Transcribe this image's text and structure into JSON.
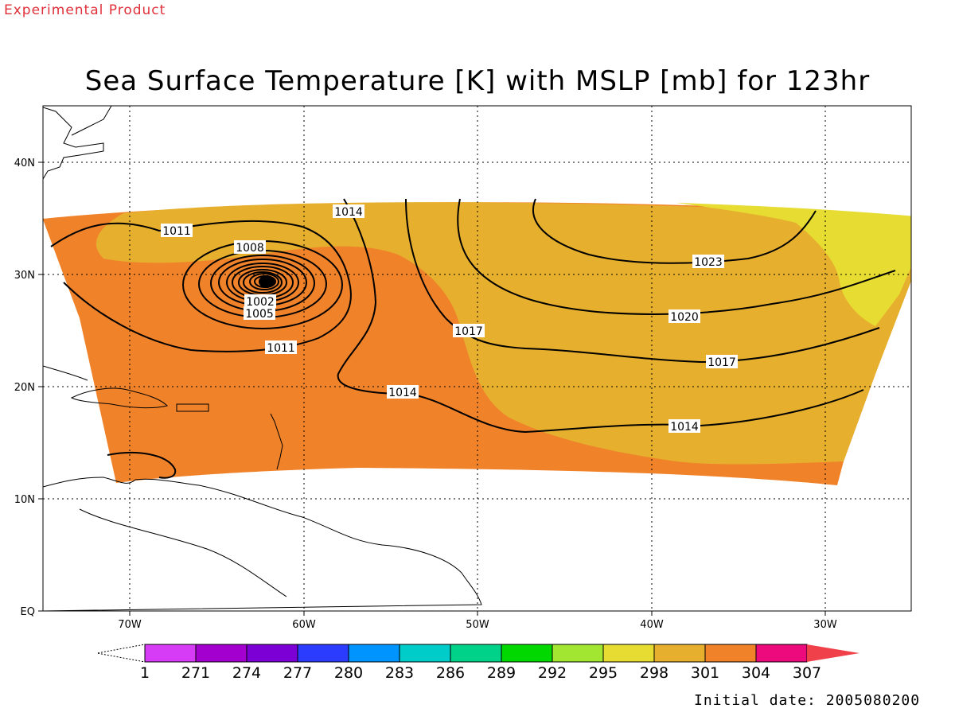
{
  "header": {
    "product_tag": "Experimental Product",
    "title": "Sea Surface Temperature [K] with MSLP [mb] for 123hr"
  },
  "footer": {
    "initial_date_label": "Initial date:",
    "initial_date_value": "2005080200"
  },
  "map": {
    "lon_ticks": [
      "70W",
      "60W",
      "50W",
      "40W",
      "30W"
    ],
    "lat_ticks": [
      "EQ",
      "10N",
      "20N",
      "30N",
      "40N"
    ],
    "grid": true,
    "region": "Tropical North Atlantic / Caribbean",
    "isobar_labels": [
      "1011",
      "1008",
      "1014",
      "1023",
      "1005",
      "1017",
      "1020",
      "1011",
      "1014",
      "1017",
      "1014"
    ],
    "low_center_label": "1002"
  },
  "colorbar": {
    "tick_labels": [
      "1",
      "271",
      "274",
      "277",
      "280",
      "283",
      "286",
      "289",
      "292",
      "295",
      "298",
      "301",
      "304",
      "307"
    ],
    "colors": [
      "#d63cf5",
      "#a300cf",
      "#7c00d6",
      "#2b3cff",
      "#0094ff",
      "#00ccc9",
      "#00d389",
      "#00d800",
      "#a2e632",
      "#e6dc32",
      "#e6af2d",
      "#f0822a",
      "#ec0a7d",
      "#f0414b"
    ]
  },
  "chart_data": {
    "type": "heatmap",
    "title": "Sea Surface Temperature [K] with MSLP [mb] for 123hr",
    "fill_variable": "Sea Surface Temperature [K]",
    "contour_variable": "MSLP [mb]",
    "contour_levels": [
      1002,
      1005,
      1008,
      1011,
      1014,
      1017,
      1020,
      1023
    ],
    "low_pressure_center": {
      "lon": -62.5,
      "lat": 29,
      "value": 1002
    },
    "sst_regions": [
      {
        "area": "Caribbean & western subtropics",
        "value_range_K": [
          301,
          304
        ]
      },
      {
        "area": "Central Atlantic",
        "value_range_K": [
          298,
          301
        ]
      },
      {
        "area": "Northeast near 30W, 30-35N",
        "value_range_K": [
          295,
          298
        ]
      }
    ],
    "xlim": [
      -75,
      -25
    ],
    "ylim": [
      0,
      45
    ]
  }
}
